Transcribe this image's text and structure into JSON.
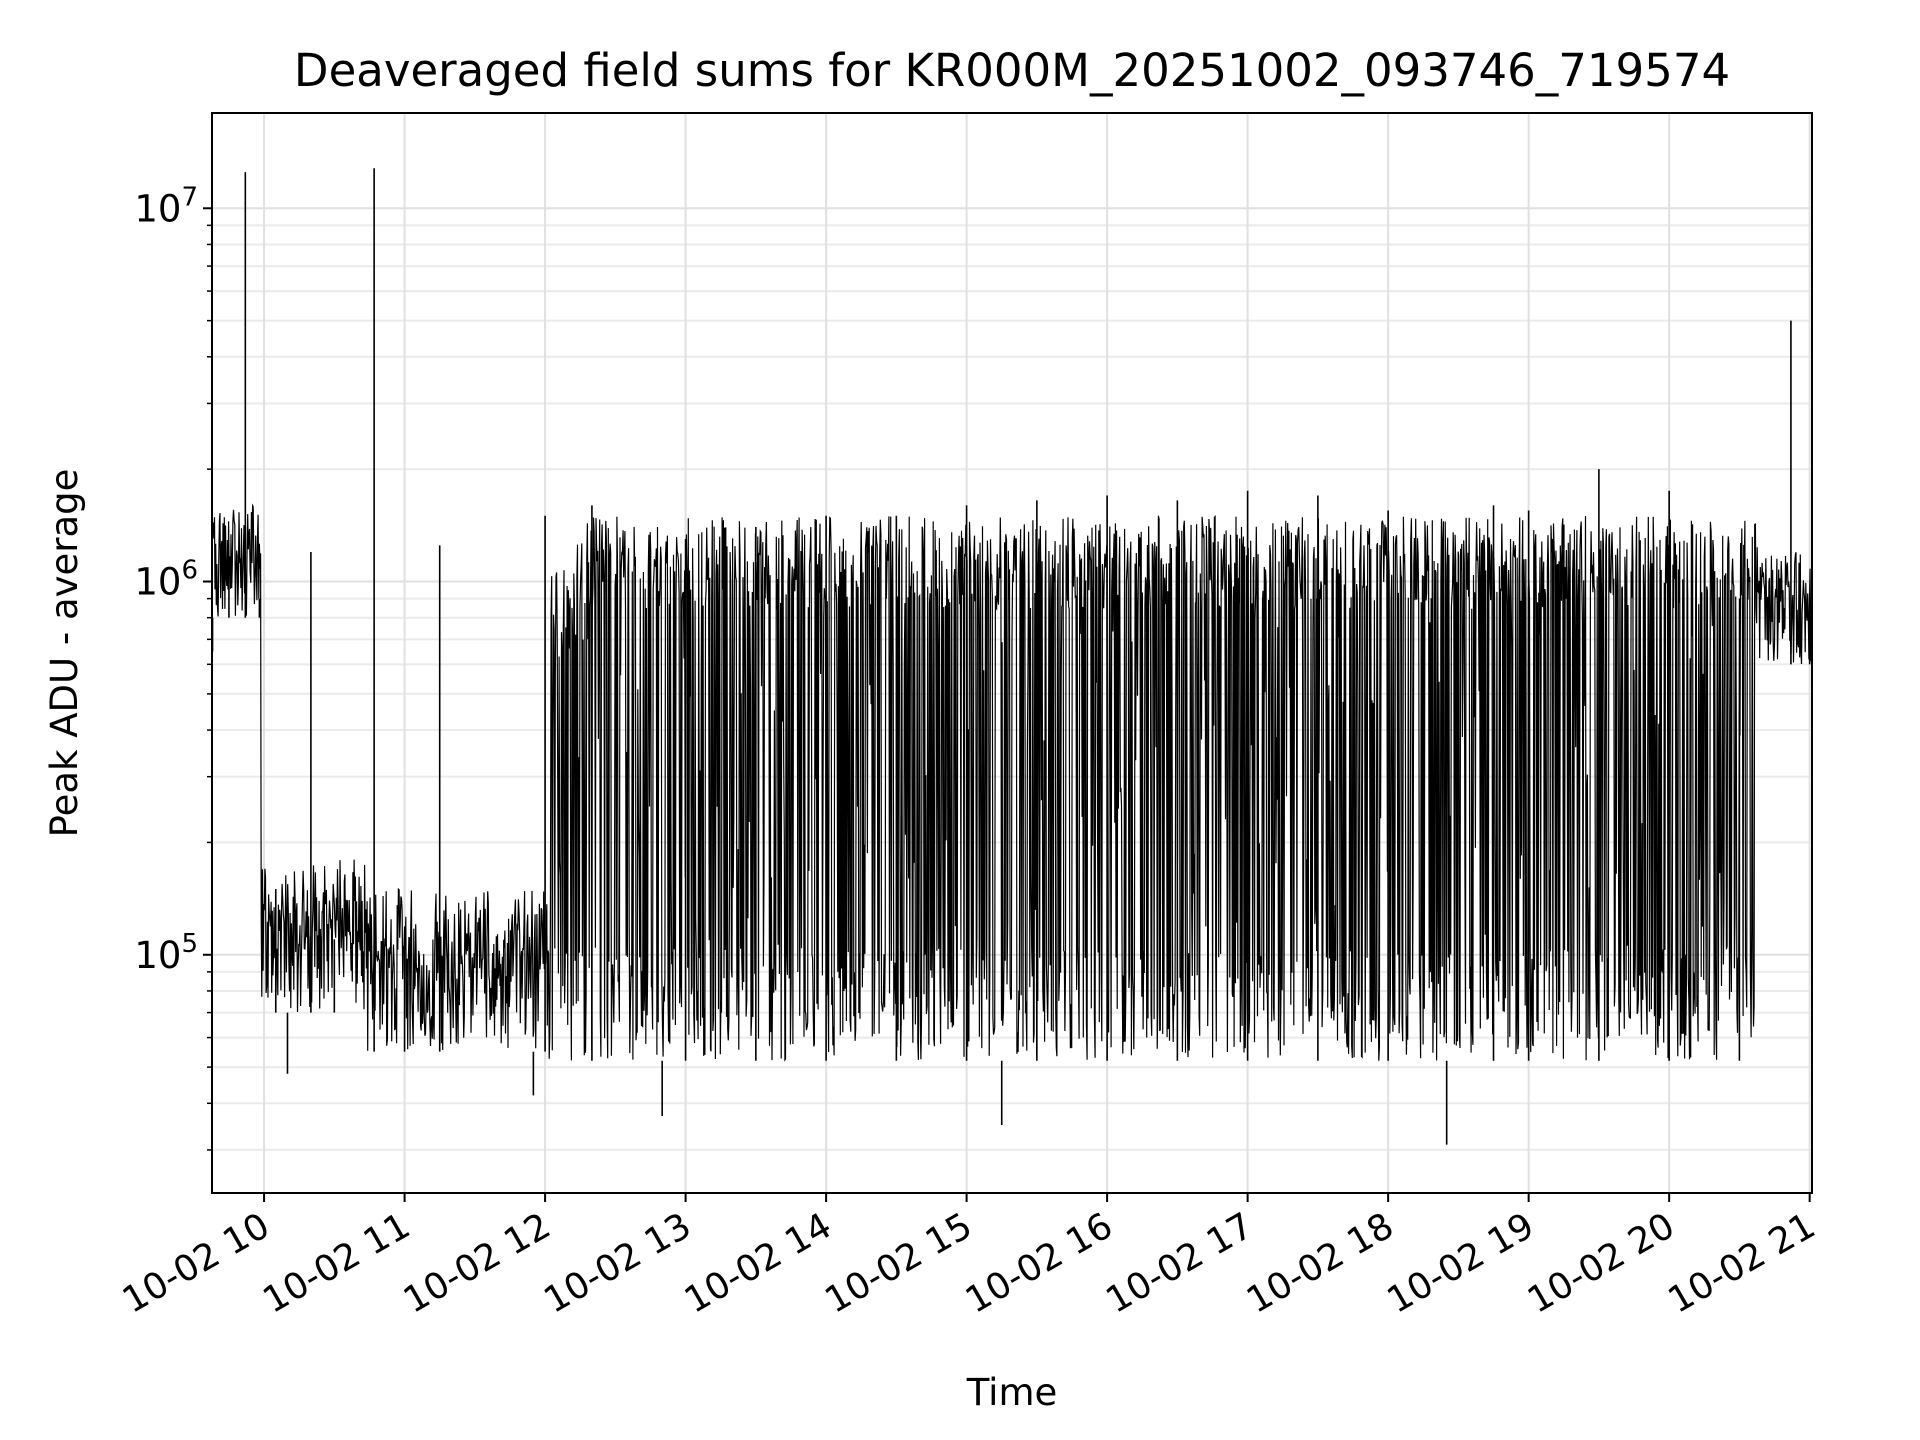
{
  "chart_data": {
    "type": "line",
    "title": "Deaveraged field sums for KR000M_20251002_093746_719574",
    "xlabel": "Time",
    "ylabel": "Peak ADU - average",
    "yscale": "log",
    "ylim": [
      23000,
      18000000
    ],
    "xlim": [
      "2025-10-02 09:37:46",
      "2025-10-02 21:01:00"
    ],
    "grid": true,
    "grid_minor": true,
    "line_color": "#000000",
    "x_ticks": [
      {
        "value": "2025-10-02 10:00",
        "label": "10-02 10"
      },
      {
        "value": "2025-10-02 11:00",
        "label": "10-02 11"
      },
      {
        "value": "2025-10-02 12:00",
        "label": "10-02 12"
      },
      {
        "value": "2025-10-02 13:00",
        "label": "10-02 13"
      },
      {
        "value": "2025-10-02 14:00",
        "label": "10-02 14"
      },
      {
        "value": "2025-10-02 15:00",
        "label": "10-02 15"
      },
      {
        "value": "2025-10-02 16:00",
        "label": "10-02 16"
      },
      {
        "value": "2025-10-02 17:00",
        "label": "10-02 17"
      },
      {
        "value": "2025-10-02 18:00",
        "label": "10-02 18"
      },
      {
        "value": "2025-10-02 19:00",
        "label": "10-02 19"
      },
      {
        "value": "2025-10-02 20:00",
        "label": "10-02 20"
      },
      {
        "value": "2025-10-02 21:00",
        "label": "10-02 21"
      }
    ],
    "y_ticks": [
      {
        "value": 100000,
        "base": "10",
        "exp": "5"
      },
      {
        "value": 1000000,
        "base": "10",
        "exp": "6"
      },
      {
        "value": 10000000,
        "base": "10",
        "exp": "7"
      }
    ],
    "series": [
      {
        "points": [
          {
            "x": "2025-10-02 09:38",
            "y": 650000
          },
          {
            "x": "2025-10-02 09:45",
            "y": 1100000
          },
          {
            "x": "2025-10-02 09:52",
            "y": 12500000
          },
          {
            "x": "2025-10-02 09:58",
            "y": 900000
          },
          {
            "x": "2025-10-02 10:05",
            "y": 150000
          },
          {
            "x": "2025-10-02 10:10",
            "y": 48000
          },
          {
            "x": "2025-10-02 10:20",
            "y": 1200000
          },
          {
            "x": "2025-10-02 10:30",
            "y": 110000
          },
          {
            "x": "2025-10-02 10:47",
            "y": 12800000
          },
          {
            "x": "2025-10-02 11:00",
            "y": 110000
          },
          {
            "x": "2025-10-02 11:15",
            "y": 1250000
          },
          {
            "x": "2025-10-02 11:30",
            "y": 55000
          },
          {
            "x": "2025-10-02 11:55",
            "y": 42000
          },
          {
            "x": "2025-10-02 12:00",
            "y": 1500000
          },
          {
            "x": "2025-10-02 12:20",
            "y": 1600000
          },
          {
            "x": "2025-10-02 12:50",
            "y": 37000
          },
          {
            "x": "2025-10-02 13:00",
            "y": 1300000
          },
          {
            "x": "2025-10-02 13:30",
            "y": 1400000
          },
          {
            "x": "2025-10-02 14:00",
            "y": 1500000
          },
          {
            "x": "2025-10-02 14:30",
            "y": 1500000
          },
          {
            "x": "2025-10-02 15:00",
            "y": 1600000
          },
          {
            "x": "2025-10-02 15:15",
            "y": 35000
          },
          {
            "x": "2025-10-02 15:30",
            "y": 1650000
          },
          {
            "x": "2025-10-02 16:00",
            "y": 1700000
          },
          {
            "x": "2025-10-02 16:30",
            "y": 1650000
          },
          {
            "x": "2025-10-02 17:00",
            "y": 1750000
          },
          {
            "x": "2025-10-02 17:30",
            "y": 1700000
          },
          {
            "x": "2025-10-02 18:00",
            "y": 1550000
          },
          {
            "x": "2025-10-02 18:25",
            "y": 31000
          },
          {
            "x": "2025-10-02 18:45",
            "y": 1600000
          },
          {
            "x": "2025-10-02 19:00",
            "y": 1550000
          },
          {
            "x": "2025-10-02 19:30",
            "y": 2000000
          },
          {
            "x": "2025-10-02 20:00",
            "y": 1750000
          },
          {
            "x": "2025-10-02 20:30",
            "y": 450000
          },
          {
            "x": "2025-10-02 20:52",
            "y": 5000000
          },
          {
            "x": "2025-10-02 21:00",
            "y": 800000
          }
        ]
      }
    ]
  }
}
